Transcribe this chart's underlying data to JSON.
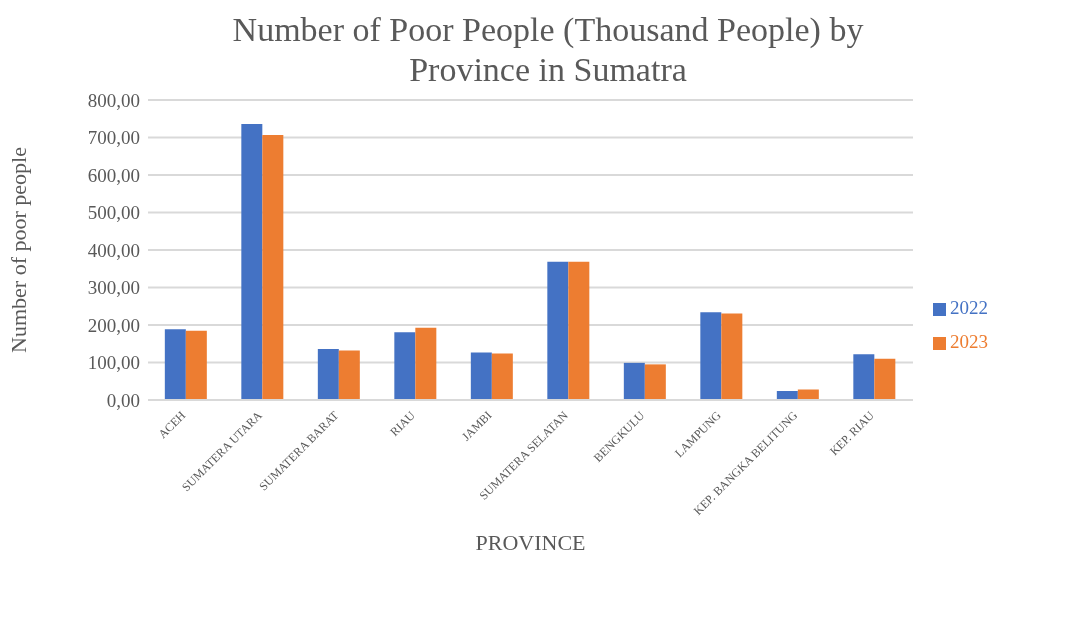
{
  "chart_data": {
    "type": "bar",
    "title": "Number of Poor People (Thousand People) by Province in Sumatra",
    "xlabel": "PROVINCE",
    "ylabel": "Number of poor people",
    "categories": [
      "ACEH",
      "SUMATERA UTARA",
      "SUMATERA BARAT",
      "RIAU",
      "JAMBI",
      "SUMATERA SELATAN",
      "BENGKULU",
      "LAMPUNG",
      "KEP. BANGKA BELITUNG",
      "KEP. RIAU"
    ],
    "series": [
      {
        "name": "2022",
        "color": "#4472c4",
        "values": [
          189,
          736,
          136,
          181,
          127,
          369,
          99,
          234,
          24,
          122
        ]
      },
      {
        "name": "2023",
        "color": "#ed7d31",
        "values": [
          185,
          707,
          132,
          193,
          124,
          369,
          95,
          231,
          28,
          110
        ]
      }
    ],
    "ylim": [
      0,
      800
    ],
    "yticks": [
      {
        "value": 0,
        "label": "0,00"
      },
      {
        "value": 100,
        "label": "100,00"
      },
      {
        "value": 200,
        "label": "200,00"
      },
      {
        "value": 300,
        "label": "300,00"
      },
      {
        "value": 400,
        "label": "400,00"
      },
      {
        "value": 500,
        "label": "500,00"
      },
      {
        "value": 600,
        "label": "600,00"
      },
      {
        "value": 700,
        "label": "700,00"
      },
      {
        "value": 800,
        "label": "800,00"
      }
    ],
    "grid": "y",
    "legend": "right"
  }
}
